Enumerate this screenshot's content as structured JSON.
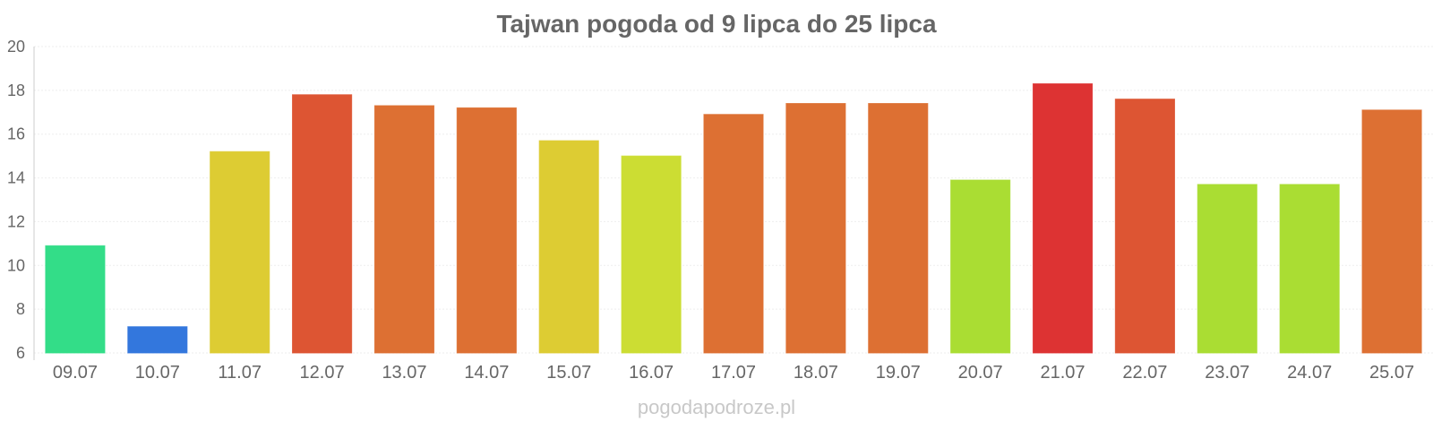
{
  "chart_data": {
    "type": "bar",
    "title": "Tajwan pogoda od 9 lipca do 25 lipca",
    "xlabel": "",
    "ylabel": "",
    "ylim": [
      6,
      20
    ],
    "yticks": [
      6,
      8,
      10,
      12,
      14,
      16,
      18,
      20
    ],
    "grid": true,
    "categories": [
      "09.07",
      "10.07",
      "11.07",
      "12.07",
      "13.07",
      "14.07",
      "15.07",
      "16.07",
      "17.07",
      "18.07",
      "19.07",
      "20.07",
      "21.07",
      "22.07",
      "23.07",
      "24.07",
      "25.07"
    ],
    "values": [
      10.9,
      7.2,
      15.2,
      17.8,
      17.3,
      17.2,
      15.7,
      15.0,
      16.9,
      17.4,
      17.4,
      13.9,
      18.3,
      17.6,
      13.7,
      13.7,
      17.1
    ],
    "colors": [
      "#33dd88",
      "#3377dd",
      "#ddcc33",
      "#dd5533",
      "#dd7033",
      "#dd7033",
      "#ddcc33",
      "#ccdd33",
      "#dd7033",
      "#dd7033",
      "#dd7033",
      "#aadd33",
      "#dd3333",
      "#dd5533",
      "#aadd33",
      "#aadd33",
      "#dd7033"
    ]
  },
  "footer": {
    "watermark": "pogodapodroze.pl"
  }
}
